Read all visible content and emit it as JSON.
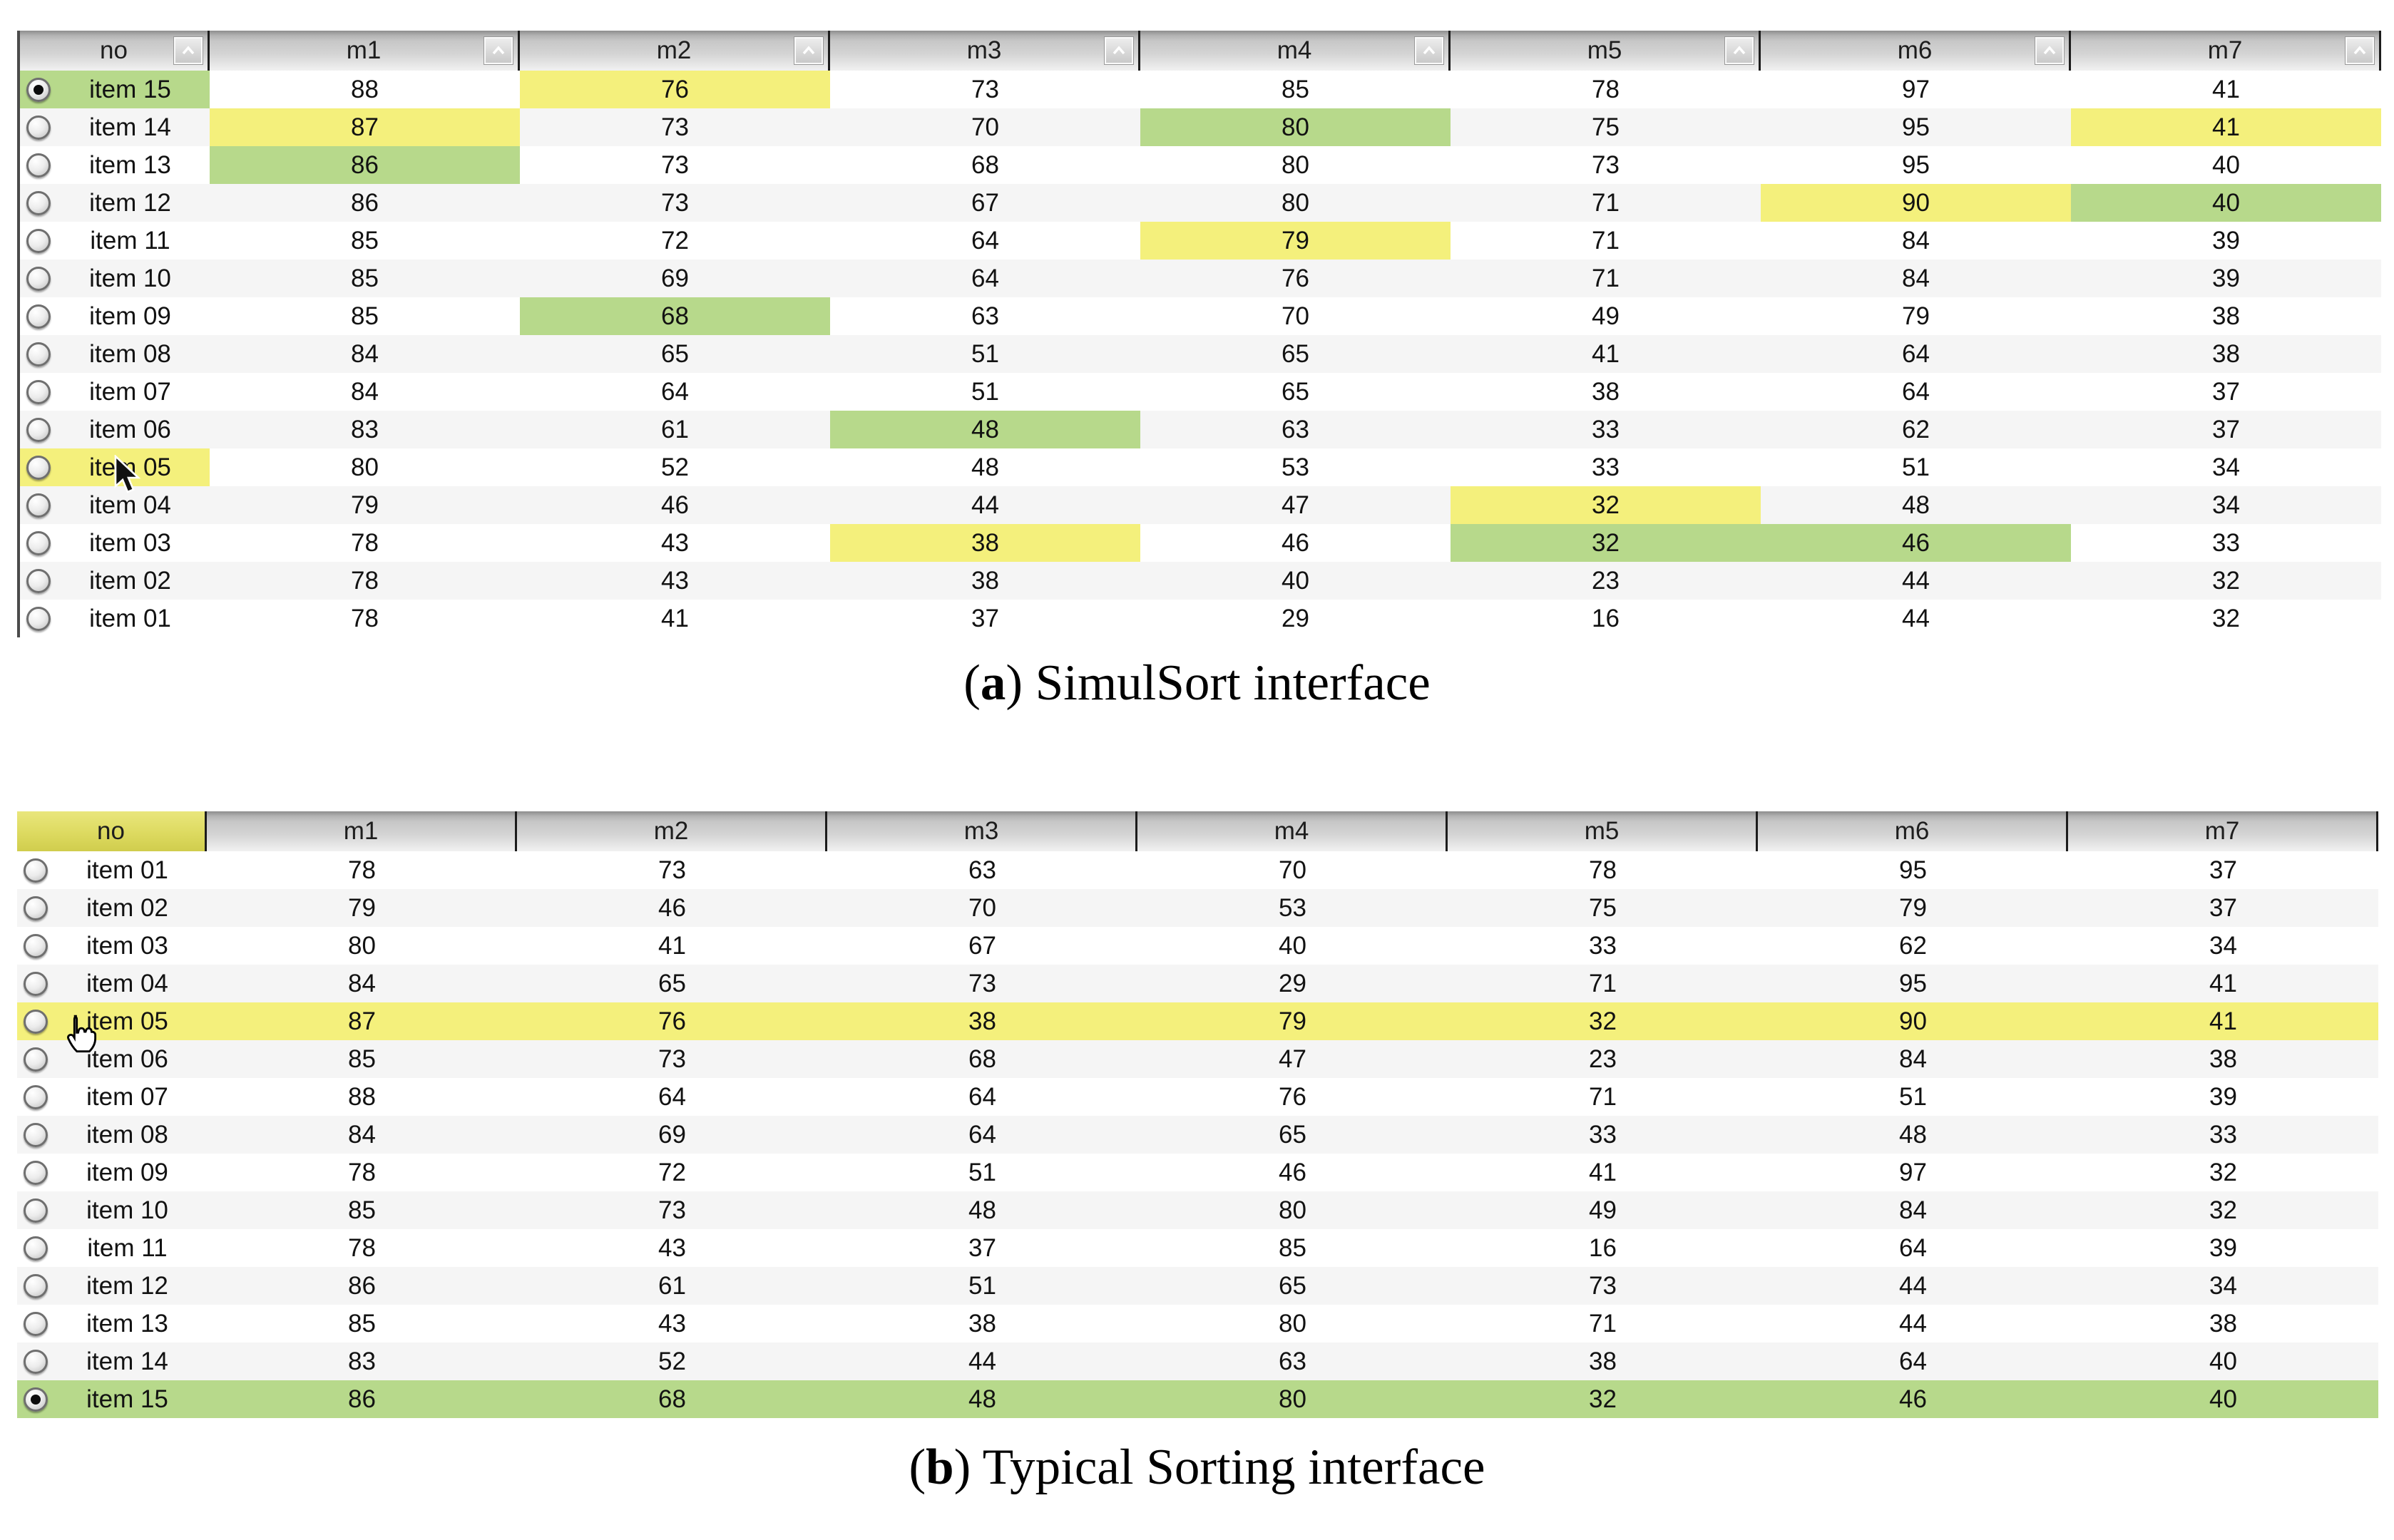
{
  "colors": {
    "highlight_yellow": "#f4f07c",
    "highlight_green": "#b7d98b",
    "no_header_yellow": "#ddda60",
    "header_gray": "#c7c7c7",
    "zebra_stripe": "#f5f5f5"
  },
  "captions": {
    "a": {
      "open": "(",
      "letter": "a",
      "rest": ") SimulSort interface"
    },
    "b": {
      "open": "(",
      "letter": "b",
      "rest": ") Typical Sorting interface"
    }
  },
  "simulsort": {
    "headers": [
      "no",
      "m1",
      "m2",
      "m3",
      "m4",
      "m5",
      "m6",
      "m7"
    ],
    "sort_icon": "chevron-up-icon",
    "has_sort_buttons": true,
    "rows": [
      {
        "label": "item 15",
        "selected": true,
        "no_highlight": "green",
        "values": [
          88,
          76,
          73,
          85,
          78,
          97,
          41
        ],
        "highlights": {
          "1": "yellow"
        }
      },
      {
        "label": "item 14",
        "values": [
          87,
          73,
          70,
          80,
          75,
          95,
          41
        ],
        "highlights": {
          "0": "yellow",
          "3": "green",
          "6": "yellow"
        }
      },
      {
        "label": "item 13",
        "values": [
          86,
          73,
          68,
          80,
          73,
          95,
          40
        ],
        "highlights": {
          "0": "green"
        }
      },
      {
        "label": "item 12",
        "values": [
          86,
          73,
          67,
          80,
          71,
          90,
          40
        ],
        "highlights": {
          "5": "yellow",
          "6": "green"
        }
      },
      {
        "label": "item 11",
        "values": [
          85,
          72,
          64,
          79,
          71,
          84,
          39
        ],
        "highlights": {
          "3": "yellow"
        }
      },
      {
        "label": "item 10",
        "values": [
          85,
          69,
          64,
          76,
          71,
          84,
          39
        ],
        "highlights": {}
      },
      {
        "label": "item 09",
        "values": [
          85,
          68,
          63,
          70,
          49,
          79,
          38
        ],
        "highlights": {
          "1": "green"
        }
      },
      {
        "label": "item 08",
        "values": [
          84,
          65,
          51,
          65,
          41,
          64,
          38
        ],
        "highlights": {}
      },
      {
        "label": "item 07",
        "values": [
          84,
          64,
          51,
          65,
          38,
          64,
          37
        ],
        "highlights": {}
      },
      {
        "label": "item 06",
        "values": [
          83,
          61,
          48,
          63,
          33,
          62,
          37
        ],
        "highlights": {
          "2": "green"
        }
      },
      {
        "label": "item 05",
        "no_highlight": "yellow",
        "values": [
          80,
          52,
          48,
          53,
          33,
          51,
          34
        ],
        "highlights": {}
      },
      {
        "label": "item 04",
        "values": [
          79,
          46,
          44,
          47,
          32,
          48,
          34
        ],
        "highlights": {
          "4": "yellow"
        }
      },
      {
        "label": "item 03",
        "values": [
          78,
          43,
          38,
          46,
          32,
          46,
          33
        ],
        "highlights": {
          "2": "yellow",
          "4": "green",
          "5": "green"
        }
      },
      {
        "label": "item 02",
        "values": [
          78,
          43,
          38,
          40,
          23,
          44,
          32
        ],
        "highlights": {}
      },
      {
        "label": "item 01",
        "values": [
          78,
          41,
          37,
          29,
          16,
          44,
          32
        ],
        "highlights": {}
      }
    ]
  },
  "typical": {
    "headers": [
      "no",
      "m1",
      "m2",
      "m3",
      "m4",
      "m5",
      "m6",
      "m7"
    ],
    "no_header_highlight": "yellow",
    "has_sort_buttons": false,
    "rows": [
      {
        "label": "item 01",
        "values": [
          78,
          73,
          63,
          70,
          78,
          95,
          37
        ]
      },
      {
        "label": "item 02",
        "values": [
          79,
          46,
          70,
          53,
          75,
          79,
          37
        ]
      },
      {
        "label": "item 03",
        "values": [
          80,
          41,
          67,
          40,
          33,
          62,
          34
        ]
      },
      {
        "label": "item 04",
        "values": [
          84,
          65,
          73,
          29,
          71,
          95,
          41
        ]
      },
      {
        "label": "item 05",
        "row_highlight": "yellow",
        "values": [
          87,
          76,
          38,
          79,
          32,
          90,
          41
        ]
      },
      {
        "label": "item 06",
        "values": [
          85,
          73,
          68,
          47,
          23,
          84,
          38
        ]
      },
      {
        "label": "item 07",
        "values": [
          88,
          64,
          64,
          76,
          71,
          51,
          39
        ]
      },
      {
        "label": "item 08",
        "values": [
          84,
          69,
          64,
          65,
          33,
          48,
          33
        ]
      },
      {
        "label": "item 09",
        "values": [
          78,
          72,
          51,
          46,
          41,
          97,
          32
        ]
      },
      {
        "label": "item 10",
        "values": [
          85,
          73,
          48,
          80,
          49,
          84,
          32
        ]
      },
      {
        "label": "item 11",
        "values": [
          78,
          43,
          37,
          85,
          16,
          64,
          39
        ]
      },
      {
        "label": "item 12",
        "values": [
          86,
          61,
          51,
          65,
          73,
          44,
          34
        ]
      },
      {
        "label": "item 13",
        "values": [
          85,
          43,
          38,
          80,
          71,
          44,
          38
        ]
      },
      {
        "label": "item 14",
        "values": [
          83,
          52,
          44,
          63,
          38,
          64,
          40
        ]
      },
      {
        "label": "item 15",
        "selected": true,
        "row_highlight": "green",
        "values": [
          86,
          68,
          48,
          80,
          32,
          46,
          40
        ]
      }
    ]
  }
}
